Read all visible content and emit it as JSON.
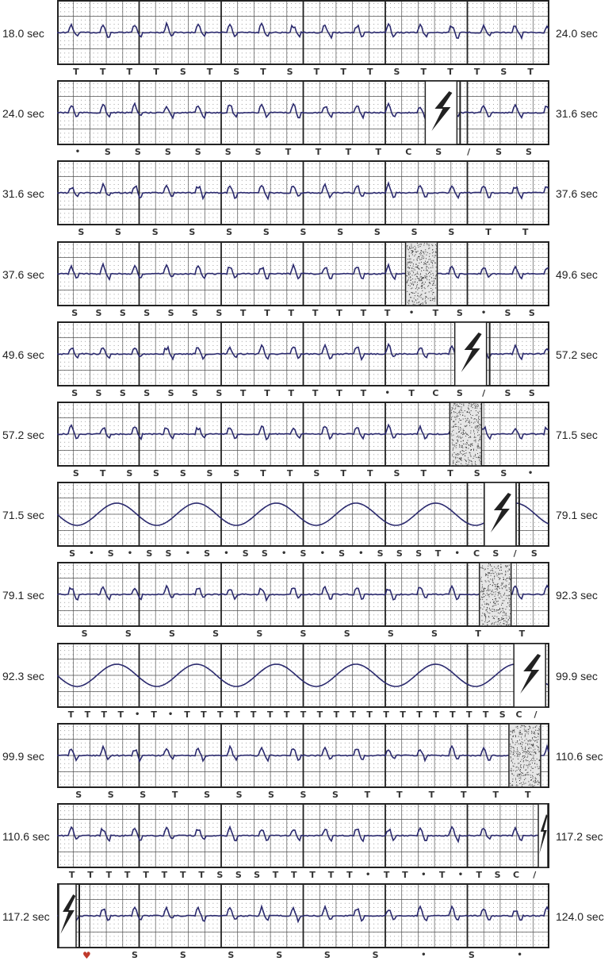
{
  "chart_data": {
    "type": "line",
    "description_units": "seconds",
    "colors": {
      "trace": "#2b2a6e",
      "grid": "#333333",
      "heart": "#c0392b"
    },
    "strips": [
      {
        "start": "18.0 sec",
        "end": "24.0 sec",
        "events": [],
        "marks": [
          "T",
          "T",
          "T",
          "T",
          "S",
          "T",
          "S",
          "T",
          "S",
          "T",
          "T",
          "T",
          "S",
          "T",
          "T",
          "T",
          "S",
          "T"
        ]
      },
      {
        "start": "24.0 sec",
        "end": "31.6 sec",
        "events": [
          {
            "kind": "shock",
            "pos": 0.78
          }
        ],
        "marks": [
          "•",
          "S",
          "S",
          "S",
          "S",
          "S",
          "S",
          "T",
          "T",
          "T",
          "T",
          "C",
          "S",
          "/",
          "S",
          "S"
        ]
      },
      {
        "start": "31.6 sec",
        "end": "37.6 sec",
        "events": [],
        "marks": [
          "S",
          "S",
          "S",
          "S",
          "S",
          "S",
          "S",
          "S",
          "S",
          "S",
          "S",
          "T",
          "T"
        ]
      },
      {
        "start": "37.6 sec",
        "end": "49.6 sec",
        "events": [
          {
            "kind": "noise",
            "pos": 0.74
          }
        ],
        "marks": [
          "S",
          "S",
          "S",
          "S",
          "S",
          "S",
          "S",
          "T",
          "T",
          "T",
          "T",
          "T",
          "T",
          "T",
          "•",
          "T",
          "S",
          "•",
          "S",
          "S"
        ]
      },
      {
        "start": "49.6 sec",
        "end": "57.2 sec",
        "events": [
          {
            "kind": "shock",
            "pos": 0.84
          }
        ],
        "marks": [
          "S",
          "S",
          "S",
          "S",
          "S",
          "S",
          "S",
          "T",
          "T",
          "T",
          "T",
          "T",
          "T",
          "•",
          "T",
          "C",
          "S",
          "/",
          "S",
          "S"
        ]
      },
      {
        "start": "57.2 sec",
        "end": "71.5 sec",
        "events": [
          {
            "kind": "noise",
            "pos": 0.83
          }
        ],
        "marks": [
          "S",
          "T",
          "S",
          "S",
          "S",
          "S",
          "S",
          "T",
          "T",
          "S",
          "T",
          "T",
          "S",
          "T",
          "T",
          "S",
          "S",
          "•"
        ]
      },
      {
        "start": "71.5 sec",
        "end": "79.1 sec",
        "events": [
          {
            "kind": "shock",
            "pos": 0.9
          }
        ],
        "marks": [
          "S",
          "•",
          "S",
          "•",
          "S",
          "S",
          "•",
          "S",
          "•",
          "S",
          "S",
          "•",
          "S",
          "•",
          "S",
          "•",
          "S",
          "S",
          "S",
          "T",
          "•",
          "C",
          "S",
          "/",
          "S"
        ]
      },
      {
        "start": "79.1 sec",
        "end": "92.3 sec",
        "events": [
          {
            "kind": "noise",
            "pos": 0.89
          }
        ],
        "marks": [
          "S",
          "S",
          "S",
          "S",
          "S",
          "S",
          "S",
          "S",
          "S",
          "T",
          "T"
        ]
      },
      {
        "start": "92.3 sec",
        "end": "99.9 sec",
        "events": [
          {
            "kind": "shock",
            "pos": 0.96
          }
        ],
        "marks": [
          "T",
          "T",
          "T",
          "T",
          "•",
          "T",
          "•",
          "T",
          "T",
          "T",
          "T",
          "T",
          "T",
          "T",
          "T",
          "T",
          "T",
          "T",
          "T",
          "T",
          "T",
          "T",
          "T",
          "T",
          "T",
          "T",
          "S",
          "C",
          "/"
        ]
      },
      {
        "start": "99.9 sec",
        "end": "110.6 sec",
        "events": [
          {
            "kind": "noise",
            "pos": 0.95
          }
        ],
        "marks": [
          "S",
          "S",
          "S",
          "T",
          "S",
          "S",
          "S",
          "S",
          "S",
          "T",
          "T",
          "T",
          "T",
          "T",
          "T"
        ]
      },
      {
        "start": "110.6 sec",
        "end": "117.2 sec",
        "events": [
          {
            "kind": "shock",
            "pos": 0.99
          }
        ],
        "marks": [
          "T",
          "T",
          "T",
          "T",
          "T",
          "T",
          "T",
          "T",
          "S",
          "S",
          "S",
          "T",
          "T",
          "T",
          "T",
          "T",
          "•",
          "T",
          "T",
          "•",
          "T",
          "•",
          "T",
          "S",
          "C",
          "/"
        ]
      },
      {
        "start": "117.2 sec",
        "end": "124.0 sec",
        "events": [
          {
            "kind": "shock",
            "pos": 0.02
          }
        ],
        "marks": [
          "♥",
          "S",
          "S",
          "S",
          "S",
          "S",
          "S",
          "•",
          "S",
          "•"
        ]
      }
    ]
  }
}
